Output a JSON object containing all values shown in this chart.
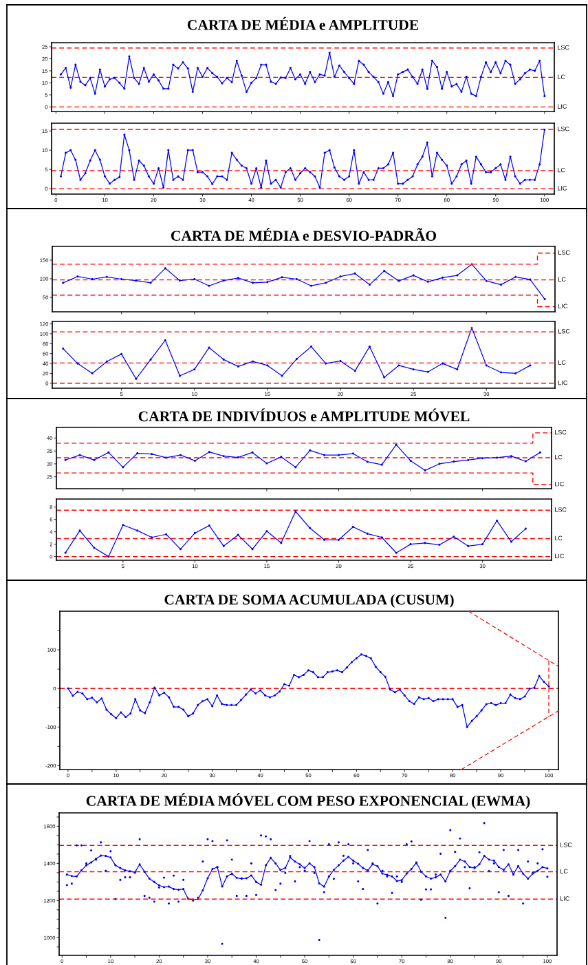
{
  "chart_data": [
    {
      "type": "line",
      "title": "CARTA DE MÉDIA e AMPLITUDE",
      "marker": "circle",
      "line_style": "solid",
      "x": [
        1,
        2,
        3,
        4,
        5,
        6,
        7,
        8,
        9,
        10,
        11,
        12,
        13,
        14,
        15,
        16,
        17,
        18,
        19,
        20,
        21,
        22,
        23,
        24,
        25,
        26,
        27,
        28,
        29,
        30,
        31,
        32,
        33,
        34,
        35,
        36,
        37,
        38,
        39,
        40,
        41,
        42,
        43,
        44,
        45,
        46,
        47,
        48,
        49,
        50,
        51,
        52,
        53,
        54,
        55,
        56,
        57,
        58,
        59,
        60,
        61,
        62,
        63,
        64,
        65,
        66,
        67,
        68,
        69,
        70,
        71,
        72,
        73,
        74,
        75,
        76,
        77,
        78,
        79,
        80,
        81,
        82,
        83,
        84,
        85,
        86,
        87,
        88,
        89,
        90,
        91,
        92,
        93,
        94,
        95,
        96,
        97,
        98,
        99,
        100
      ],
      "series": [
        {
          "color": "#0000ff",
          "values": [
            13.5,
            16.2,
            8,
            17.5,
            10.5,
            9,
            12,
            5.5,
            15.5,
            8.5,
            11.5,
            12,
            10,
            7.6,
            21,
            12,
            9.6,
            16.2,
            10.5,
            13.5,
            11,
            7.6,
            7.6,
            17.5,
            16,
            18.5,
            16,
            6.3,
            16.2,
            12.5,
            16.2,
            14,
            12.5,
            9.8,
            12,
            10.3,
            19.2,
            13,
            6.3,
            10,
            12,
            17.5,
            17.5,
            10.5,
            9.6,
            12.2,
            12,
            16.2,
            11.5,
            13.5,
            9.6,
            14.5,
            10.3,
            13.5,
            13,
            22.5,
            12.5,
            17.2,
            14.5,
            12,
            9.6,
            19.2,
            17.5,
            14.5,
            12.5,
            10.3,
            5.5,
            10.3,
            4.5,
            13.5,
            14.5,
            15.5,
            12.5,
            9.6,
            15.5,
            7.5,
            19.2,
            16.5,
            7.5,
            14.5,
            8.5,
            9.5,
            6.3,
            12.5,
            5.5,
            4.5,
            12.5,
            18.5,
            14.5,
            18.5,
            14,
            19.2,
            17.5,
            9.6,
            11.5,
            14,
            15.5,
            15,
            19.2,
            4.5
          ]
        }
      ],
      "ref_lines": [
        {
          "axis": "y",
          "value": 24.5,
          "label": "LSC",
          "color": "#ff0000",
          "line_style": "dashed"
        },
        {
          "axis": "y",
          "value": 12.3,
          "label": "LC",
          "color": "#ff0000",
          "line_style": "dashed"
        },
        {
          "axis": "y",
          "value": 0,
          "label": "LIC",
          "color": "#ff0000",
          "line_style": "dashed"
        }
      ],
      "xlim": [
        -0.9,
        102
      ],
      "xticks": [
        0,
        10,
        20,
        30,
        40,
        50,
        60,
        70,
        80,
        90,
        100
      ],
      "ylim": [
        -1.9,
        26.7
      ],
      "yticks": [
        0,
        5,
        10,
        15,
        20,
        25
      ],
      "tick_labels": "y"
    },
    {
      "type": "line",
      "marker": "circle",
      "line_style": "solid",
      "x": [
        1,
        2,
        3,
        4,
        5,
        6,
        7,
        8,
        9,
        10,
        11,
        12,
        13,
        14,
        15,
        16,
        17,
        18,
        19,
        20,
        21,
        22,
        23,
        24,
        25,
        26,
        27,
        28,
        29,
        30,
        31,
        32,
        33,
        34,
        35,
        36,
        37,
        38,
        39,
        40,
        41,
        42,
        43,
        44,
        45,
        46,
        47,
        48,
        49,
        50,
        51,
        52,
        53,
        54,
        55,
        56,
        57,
        58,
        59,
        60,
        61,
        62,
        63,
        64,
        65,
        66,
        67,
        68,
        69,
        70,
        71,
        72,
        73,
        74,
        75,
        76,
        77,
        78,
        79,
        80,
        81,
        82,
        83,
        84,
        85,
        86,
        87,
        88,
        89,
        90,
        91,
        92,
        93,
        94,
        95,
        96,
        97,
        98,
        99,
        100
      ],
      "series": [
        {
          "color": "#0000ff",
          "values": [
            3.2,
            9.3,
            10,
            7.5,
            2.3,
            4,
            7.3,
            10,
            7.5,
            3.2,
            1.3,
            2.3,
            3,
            14,
            10,
            2.3,
            7.3,
            6,
            3.2,
            1.3,
            5.3,
            0.3,
            10,
            2.3,
            3.2,
            2.3,
            10,
            10,
            4.3,
            4.3,
            3.2,
            1.2,
            3.2,
            3.2,
            2.3,
            9.3,
            7.5,
            6,
            5.3,
            1.3,
            5.3,
            0.3,
            7.3,
            1.3,
            2.3,
            0.3,
            4.3,
            5.3,
            2.3,
            4,
            5.3,
            4.3,
            3.2,
            0.3,
            9.3,
            10,
            5.5,
            3.2,
            2.3,
            3.2,
            10,
            1.3,
            4.3,
            2.3,
            2.3,
            5.3,
            5.3,
            6.3,
            9.3,
            1.3,
            1.3,
            2.3,
            3.2,
            6.3,
            8.3,
            12,
            3.2,
            9.3,
            7.5,
            6,
            1.3,
            3.2,
            6.3,
            7.3,
            1.3,
            8.3,
            6.3,
            4.3,
            4.3,
            5.3,
            6.3,
            2.3,
            8.3,
            3.2,
            1.3,
            2.3,
            2.3,
            2.3,
            6.3,
            15.3
          ]
        }
      ],
      "ref_lines": [
        {
          "axis": "y",
          "value": 15.4,
          "label": "LSC",
          "color": "#ff0000",
          "line_style": "dashed"
        },
        {
          "axis": "y",
          "value": 4.7,
          "label": "LC",
          "color": "#ff0000",
          "line_style": "dashed"
        },
        {
          "axis": "y",
          "value": 0,
          "label": "LIC",
          "color": "#ff0000",
          "line_style": "dashed"
        }
      ],
      "xlim": [
        -0.9,
        102
      ],
      "xticks": [
        0,
        10,
        20,
        30,
        40,
        50,
        60,
        70,
        80,
        90,
        100
      ],
      "ylim": [
        -1.4,
        17
      ],
      "yticks": [
        0,
        5,
        10,
        15
      ]
    },
    {
      "type": "line",
      "title": "CARTA DE MÉDIA e DESVIO-PADRÃO",
      "marker": "circle",
      "line_style": "solid",
      "x": [
        1,
        2,
        3,
        4,
        5,
        6,
        7,
        8,
        9,
        10,
        11,
        12,
        13,
        14,
        15,
        16,
        17,
        18,
        19,
        20,
        21,
        22,
        23,
        24,
        25,
        26,
        27,
        28,
        29,
        30,
        31,
        32,
        33,
        34
      ],
      "series": [
        {
          "color": "#0000ff",
          "values": [
            89,
            106,
            99,
            105,
            99,
            95,
            89,
            128,
            95,
            99,
            81,
            95,
            102,
            89,
            91,
            104,
            99,
            81,
            89,
            106,
            114,
            84,
            121,
            94,
            109,
            92,
            103,
            109,
            139,
            94,
            84,
            105,
            98,
            45
          ],
          "colors": [
            "#0000ff",
            "#0000ff",
            "#0000ff",
            "#0000ff",
            "#0000ff",
            "#0000ff",
            "#0000ff",
            "#0000ff",
            "#0000ff",
            "#0000ff",
            "#0000ff",
            "#0000ff",
            "#0000ff",
            "#0000ff",
            "#0000ff",
            "#0000ff",
            "#0000ff",
            "#0000ff",
            "#0000ff",
            "#0000ff",
            "#0000ff",
            "#0000ff",
            "#0000ff",
            "#0000ff",
            "#0000ff",
            "#0000ff",
            "#0000ff",
            "#0000ff",
            "#ff0000",
            "#0000ff",
            "#0000ff",
            "#0000ff",
            "#0000ff",
            "#0000ff"
          ]
        },
        {
          "type": "step",
          "name": "LSC",
          "x": [
            0.26,
            33.5,
            34.7
          ],
          "values": [
            139,
            169,
            169
          ],
          "color": "#ff0000",
          "line_style": "dashed",
          "marker": "none"
        },
        {
          "type": "step",
          "name": "LIC",
          "x": [
            0.26,
            33.5,
            34.7
          ],
          "values": [
            56,
            25,
            25
          ],
          "color": "#ff0000",
          "line_style": "dashed",
          "marker": "none"
        }
      ],
      "ref_lines": [
        {
          "axis": "y",
          "value": 97,
          "label": "LC",
          "color": "#ff0000",
          "line_style": "dashed"
        }
      ],
      "xlim": [
        0.26,
        34.7
      ],
      "xticks": [
        5,
        10,
        15,
        20,
        25,
        30
      ],
      "ylim": [
        11,
        187
      ],
      "yticks": [
        50,
        100,
        150
      ],
      "tick_labels": "y"
    },
    {
      "type": "line",
      "marker": "circle",
      "line_style": "solid",
      "x": [
        1,
        2,
        3,
        4,
        5,
        6,
        7,
        8,
        9,
        10,
        11,
        12,
        13,
        14,
        15,
        16,
        17,
        18,
        19,
        20,
        21,
        22,
        23,
        24,
        25,
        26,
        27,
        28,
        29,
        30,
        31,
        32,
        33
      ],
      "series": [
        {
          "color": "#0000ff",
          "values": [
            70,
            40,
            20,
            44,
            59,
            9,
            48,
            87,
            15,
            28,
            72,
            48,
            34,
            44,
            36,
            15,
            49,
            74,
            40,
            45,
            25,
            74,
            12,
            36,
            28,
            23,
            40,
            28,
            112,
            36,
            22,
            20,
            36
          ],
          "colors": [
            "#0000ff",
            "#0000ff",
            "#0000ff",
            "#0000ff",
            "#0000ff",
            "#0000ff",
            "#0000ff",
            "#0000ff",
            "#0000ff",
            "#0000ff",
            "#0000ff",
            "#0000ff",
            "#0000ff",
            "#0000ff",
            "#0000ff",
            "#0000ff",
            "#0000ff",
            "#0000ff",
            "#0000ff",
            "#0000ff",
            "#0000ff",
            "#0000ff",
            "#0000ff",
            "#0000ff",
            "#0000ff",
            "#0000ff",
            "#0000ff",
            "#0000ff",
            "#ff0000",
            "#0000ff",
            "#0000ff",
            "#0000ff",
            "#0000ff"
          ]
        }
      ],
      "ref_lines": [
        {
          "axis": "y",
          "value": 104,
          "label": "LSC",
          "color": "#ff0000",
          "line_style": "dashed"
        },
        {
          "axis": "y",
          "value": 41,
          "label": "LC",
          "color": "#ff0000",
          "line_style": "dashed"
        },
        {
          "axis": "y",
          "value": 0,
          "label": "LIC",
          "color": "#ff0000",
          "line_style": "dashed"
        }
      ],
      "xlim": [
        0.26,
        34.7
      ],
      "xticks": [
        5,
        10,
        15,
        20,
        25,
        30
      ],
      "ylim": [
        -10,
        125
      ],
      "yticks": [
        0,
        20,
        40,
        60,
        80,
        100,
        120
      ]
    },
    {
      "type": "line",
      "title": "CARTA DE INDIVÍDUOS e AMPLITUDE MÓVEL",
      "marker": "circle",
      "line_style": "solid",
      "x": [
        1,
        2,
        3,
        4,
        5,
        6,
        7,
        8,
        9,
        10,
        11,
        12,
        13,
        14,
        15,
        16,
        17,
        18,
        19,
        20,
        21,
        22,
        23,
        24,
        25,
        26,
        27,
        28,
        29,
        30,
        31,
        32,
        33,
        34
      ],
      "series": [
        {
          "color": "#0000ff",
          "values": [
            31.5,
            33.4,
            31.5,
            34.4,
            28.7,
            34.1,
            33.8,
            32.4,
            33.4,
            31.2,
            34.6,
            33,
            32.5,
            34.4,
            30.2,
            32.7,
            28.7,
            35.2,
            33.4,
            33.4,
            34,
            30.8,
            29.7,
            37.4,
            31.2,
            27.5,
            30,
            30.9,
            31.5,
            32.2,
            32.4,
            33,
            31,
            34.4
          ]
        },
        {
          "type": "step",
          "name": "LSC",
          "x": [
            0.37,
            33.5,
            34.8
          ],
          "values": [
            38,
            42,
            42
          ],
          "color": "#ff0000",
          "line_style": "dashed",
          "marker": "none"
        },
        {
          "type": "step",
          "name": "LIC",
          "x": [
            0.37,
            33.5,
            34.8
          ],
          "values": [
            26.5,
            22,
            22
          ],
          "color": "#ff0000",
          "line_style": "dashed",
          "marker": "none"
        }
      ],
      "ref_lines": [
        {
          "axis": "y",
          "value": 32.4,
          "label": "LC",
          "color": "#ff0000",
          "line_style": "dashed"
        }
      ],
      "xlim": [
        0.37,
        34.8
      ],
      "xticks": [
        5,
        10,
        15,
        20,
        25,
        30
      ],
      "ylim": [
        20.4,
        44.1
      ],
      "yticks": [
        25,
        30,
        35,
        40
      ],
      "tick_labels": "y"
    },
    {
      "type": "line",
      "marker": "circle",
      "line_style": "solid",
      "x": [
        1,
        2,
        3,
        4,
        5,
        6,
        7,
        8,
        9,
        10,
        11,
        12,
        13,
        14,
        15,
        16,
        17,
        18,
        19,
        20,
        21,
        22,
        23,
        24,
        25,
        26,
        27,
        28,
        29,
        30,
        31,
        32,
        33
      ],
      "series": [
        {
          "color": "#0000ff",
          "values": [
            0.6,
            4.2,
            1.4,
            0,
            5.1,
            4.2,
            3.1,
            3.6,
            1.2,
            3.8,
            5,
            1.7,
            3.5,
            1.2,
            4.1,
            2.2,
            7.3,
            4.6,
            2.7,
            2.7,
            4.8,
            3.7,
            3.1,
            0.6,
            2,
            2.2,
            1.9,
            3.2,
            1.7,
            2,
            5.8,
            2.4,
            4.5
          ]
        }
      ],
      "ref_lines": [
        {
          "axis": "y",
          "value": 7.5,
          "label": "LSC",
          "color": "#ff0000",
          "line_style": "dashed"
        },
        {
          "axis": "y",
          "value": 2.9,
          "label": "LC",
          "color": "#ff0000",
          "line_style": "dashed"
        },
        {
          "axis": "y",
          "value": 0,
          "label": "LIC",
          "color": "#ff0000",
          "line_style": "dashed"
        }
      ],
      "xlim": [
        0.37,
        34.8
      ],
      "xticks": [
        5,
        10,
        15,
        20,
        25,
        30
      ],
      "ylim": [
        -0.6,
        9.3
      ],
      "yticks": [
        0,
        2,
        4,
        6,
        8
      ]
    },
    {
      "type": "line",
      "title": "CARTA DE SOMA ACUMULADA (CUSUM)",
      "marker": "circle",
      "line_style": "solid",
      "x": [
        0,
        1,
        2,
        3,
        4,
        5,
        6,
        7,
        8,
        9,
        10,
        11,
        12,
        13,
        14,
        15,
        16,
        17,
        18,
        19,
        20,
        21,
        22,
        23,
        24,
        25,
        26,
        27,
        28,
        29,
        30,
        31,
        32,
        33,
        34,
        35,
        36,
        37,
        38,
        39,
        40,
        41,
        42,
        43,
        44,
        45,
        46,
        47,
        48,
        49,
        50,
        51,
        52,
        53,
        54,
        55,
        56,
        57,
        58,
        59,
        60,
        61,
        62,
        63,
        64,
        65,
        66,
        67,
        68,
        69,
        70,
        71,
        72,
        73,
        74,
        75,
        76,
        77,
        78,
        79,
        80,
        81,
        82,
        83,
        84,
        85,
        86,
        87,
        88,
        89,
        90,
        91,
        92,
        93,
        94,
        95,
        96,
        97,
        98,
        99,
        100
      ],
      "series": [
        {
          "color": "#0000ff",
          "values": [
            0,
            -19,
            -9,
            -13,
            -28,
            -24,
            -36,
            -26,
            -55,
            -67,
            -77,
            -62,
            -74,
            -65,
            -28,
            -57,
            -64,
            -36,
            2,
            -18,
            -11,
            -23,
            -48,
            -48,
            -55,
            -72,
            -65,
            -43,
            -33,
            -28,
            -46,
            -18,
            -40,
            -43,
            -43,
            -43,
            -30,
            -16,
            -3,
            -13,
            -5,
            -18,
            -23,
            -18,
            -8,
            11,
            7,
            35,
            29,
            35,
            47,
            42,
            29,
            29,
            42,
            44,
            47,
            42,
            54,
            68,
            78,
            88,
            84,
            78,
            56,
            42,
            30,
            -3,
            -10,
            -3,
            -18,
            -33,
            -40,
            -23,
            -28,
            -25,
            -33,
            -28,
            -28,
            -28,
            -28,
            -48,
            -43,
            -100,
            -84,
            -72,
            -57,
            -41,
            -38,
            -43,
            -38,
            -38,
            -16,
            -25,
            -28,
            -21,
            -1,
            2,
            32,
            17,
            5
          ]
        },
        {
          "type": "line",
          "x": [
            83.3,
            102
          ],
          "values": [
            200,
            57
          ],
          "color": "#ff0000",
          "line_style": "dashed",
          "marker": "none"
        },
        {
          "type": "line",
          "x": [
            100,
            100
          ],
          "values": [
            72,
            -73
          ],
          "color": "#ff0000",
          "line_style": "dashed",
          "marker": "none"
        },
        {
          "type": "line",
          "x": [
            81.8,
            102
          ],
          "values": [
            -210,
            -58
          ],
          "color": "#ff0000",
          "line_style": "dashed",
          "marker": "none"
        }
      ],
      "ref_lines": [
        {
          "axis": "y",
          "value": 0,
          "color": "#ff0000",
          "line_style": "dashed"
        }
      ],
      "xlim": [
        -1.7,
        102
      ],
      "xticks": [
        0,
        {
          "value": 5,
          "label": null
        },
        10,
        {
          "value": 15,
          "label": null
        },
        20,
        {
          "value": 25,
          "label": null
        },
        30,
        {
          "value": 35,
          "label": null
        },
        40,
        {
          "value": 45,
          "label": null
        },
        50,
        {
          "value": 55,
          "label": null
        },
        60,
        {
          "value": 65,
          "label": null
        },
        70,
        {
          "value": 75,
          "label": null
        },
        80,
        {
          "value": 85,
          "label": null
        },
        90,
        {
          "value": 95,
          "label": null
        },
        100
      ],
      "ylim": [
        -210,
        200
      ],
      "yticks": [
        -200,
        {
          "value": -150,
          "label": null
        },
        -100,
        {
          "value": -50,
          "label": null
        },
        0,
        {
          "value": 50,
          "label": null
        },
        100,
        {
          "value": 150,
          "label": null
        }
      ]
    },
    {
      "type": "line",
      "title": "CARTA DE MÉDIA MÓVEL COM PESO EXPONENCIAL (EWMA)",
      "marker": "circle",
      "line_style": "solid",
      "x": [
        1,
        2,
        3,
        4,
        5,
        6,
        7,
        8,
        9,
        10,
        11,
        12,
        13,
        14,
        15,
        16,
        17,
        18,
        19,
        20,
        21,
        22,
        23,
        24,
        25,
        26,
        27,
        28,
        29,
        30,
        31,
        32,
        33,
        34,
        35,
        36,
        37,
        38,
        39,
        40,
        41,
        42,
        43,
        44,
        45,
        46,
        47,
        48,
        49,
        50,
        51,
        52,
        53,
        54,
        55,
        56,
        57,
        58,
        59,
        60,
        61,
        62,
        63,
        64,
        65,
        66,
        67,
        68,
        69,
        70,
        71,
        72,
        73,
        74,
        75,
        76,
        77,
        78,
        79,
        80,
        81,
        82,
        83,
        84,
        85,
        86,
        87,
        88,
        89,
        90,
        91,
        92,
        93,
        94,
        95,
        96,
        97,
        98,
        99,
        100
      ],
      "series": [
        {
          "type": "scatter",
          "color": "#0000ff",
          "values": [
            1283,
            1291,
            1497,
            1497,
            1400,
            1470,
            1420,
            1513,
            1360,
            1465,
            1208,
            1311,
            1325,
            1325,
            1350,
            1530,
            1225,
            1215,
            1194,
            1270,
            1323,
            1184,
            1334,
            1194,
            1311,
            1210,
            1200,
            1215,
            1410,
            1530,
            1520,
            1380,
            967,
            1524,
            1420,
            1225,
            1320,
            1225,
            1400,
            1230,
            1550,
            1545,
            1530,
            1256,
            1291,
            1348,
            1440,
            1303,
            1380,
            1360,
            1520,
            1348,
            988,
            1245,
            1503,
            1317,
            1513,
            1441,
            1503,
            1400,
            1303,
            1262,
            1472,
            1400,
            1184,
            1360,
            1330,
            1241,
            1330,
            1300,
            1503,
            1518,
            1400,
            1204,
            1260,
            1260,
            1340,
            1452,
            1107,
            1579,
            1462,
            1534,
            1380,
            1266,
            1380,
            1460,
            1617,
            1359,
            1400,
            1245,
            1472,
            1225,
            1340,
            1472,
            1184,
            1410,
            1350,
            1400,
            1476,
            1328
          ]
        },
        {
          "type": "line",
          "color": "#0000ff",
          "values": [
            1340,
            1332,
            1330,
            1362,
            1390,
            1405,
            1425,
            1442,
            1440,
            1432,
            1390,
            1375,
            1362,
            1358,
            1352,
            1395,
            1355,
            1318,
            1300,
            1282,
            1272,
            1275,
            1262,
            1258,
            1262,
            1208,
            1205,
            1207,
            1255,
            1320,
            1370,
            1380,
            1276,
            1330,
            1345,
            1322,
            1318,
            1320,
            1335,
            1300,
            1285,
            1390,
            1430,
            1400,
            1365,
            1375,
            1432,
            1410,
            1395,
            1375,
            1400,
            1380,
            1292,
            1275,
            1330,
            1365,
            1390,
            1415,
            1435,
            1415,
            1398,
            1375,
            1362,
            1395,
            1385,
            1345,
            1338,
            1330,
            1305,
            1310,
            1345,
            1370,
            1405,
            1355,
            1330,
            1318,
            1325,
            1340,
            1303,
            1360,
            1385,
            1420,
            1410,
            1380,
            1375,
            1395,
            1440,
            1420,
            1415,
            1380,
            1365,
            1395,
            1342,
            1385,
            1345,
            1318,
            1345,
            1360,
            1380,
            1373
          ],
          "colors": [
            "#0000ff",
            "#0000ff",
            "#0000ff",
            "#0000ff",
            "#0000ff",
            "#0000ff",
            "#0000ff",
            "#0000ff",
            "#0000ff",
            "#0000ff",
            "#0000ff",
            "#0000ff",
            "#0000ff",
            "#0000ff",
            "#0000ff",
            "#0000ff",
            "#0000ff",
            "#0000ff",
            "#0000ff",
            "#0000ff",
            "#0000ff",
            "#0000ff",
            "#0000ff",
            "#0000ff",
            "#0000ff",
            "#ff0000",
            "#ff0000",
            "#ff0000",
            "#0000ff",
            "#0000ff",
            "#0000ff",
            "#0000ff",
            "#0000ff",
            "#0000ff",
            "#0000ff",
            "#0000ff",
            "#0000ff",
            "#0000ff",
            "#0000ff",
            "#0000ff",
            "#0000ff",
            "#0000ff",
            "#0000ff",
            "#0000ff",
            "#0000ff",
            "#0000ff",
            "#0000ff",
            "#0000ff",
            "#0000ff",
            "#0000ff",
            "#0000ff",
            "#0000ff",
            "#0000ff",
            "#0000ff",
            "#0000ff",
            "#0000ff",
            "#0000ff",
            "#0000ff",
            "#0000ff",
            "#0000ff",
            "#0000ff",
            "#0000ff",
            "#0000ff",
            "#0000ff",
            "#0000ff",
            "#0000ff",
            "#0000ff",
            "#0000ff",
            "#0000ff",
            "#0000ff",
            "#0000ff",
            "#0000ff",
            "#0000ff",
            "#0000ff",
            "#0000ff",
            "#0000ff",
            "#0000ff",
            "#0000ff",
            "#0000ff",
            "#0000ff",
            "#0000ff",
            "#0000ff",
            "#0000ff",
            "#0000ff",
            "#0000ff",
            "#0000ff",
            "#0000ff",
            "#0000ff",
            "#0000ff",
            "#0000ff",
            "#0000ff",
            "#0000ff",
            "#0000ff",
            "#0000ff",
            "#0000ff",
            "#0000ff",
            "#0000ff",
            "#0000ff",
            "#0000ff",
            "#0000ff"
          ]
        }
      ],
      "ref_lines": [
        {
          "axis": "y",
          "value": 1497,
          "label": "LSC",
          "color": "#ff0000",
          "line_style": "dashed"
        },
        {
          "axis": "y",
          "value": 1355,
          "label": "LC",
          "color": "#ff0000",
          "line_style": "dashed"
        },
        {
          "axis": "y",
          "value": 1208,
          "label": "LIC",
          "color": "#ff0000",
          "line_style": "dashed"
        }
      ],
      "xlim": [
        -0.6,
        102
      ],
      "xticks": [
        0,
        {
          "value": 5,
          "label": null
        },
        10,
        {
          "value": 15,
          "label": null
        },
        20,
        {
          "value": 25,
          "label": null
        },
        30,
        {
          "value": 35,
          "label": null
        },
        40,
        {
          "value": 45,
          "label": null
        },
        50,
        {
          "value": 55,
          "label": null
        },
        60,
        {
          "value": 65,
          "label": null
        },
        70,
        {
          "value": 75,
          "label": null
        },
        80,
        {
          "value": 85,
          "label": null
        },
        90,
        {
          "value": 95,
          "label": null
        },
        100
      ],
      "ylim": [
        905,
        1672
      ],
      "yticks": [
        {
          "value": 950,
          "label": null
        },
        1000,
        {
          "value": 1050,
          "label": null
        },
        {
          "value": 1100,
          "label": null
        },
        {
          "value": 1150,
          "label": null
        },
        1200,
        {
          "value": 1250,
          "label": null
        },
        {
          "value": 1300,
          "label": null
        },
        {
          "value": 1350,
          "label": null
        },
        1400,
        {
          "value": 1450,
          "label": null
        },
        {
          "value": 1500,
          "label": null
        },
        {
          "value": 1550,
          "label": null
        },
        1600,
        {
          "value": 1650,
          "label": null
        }
      ]
    }
  ]
}
